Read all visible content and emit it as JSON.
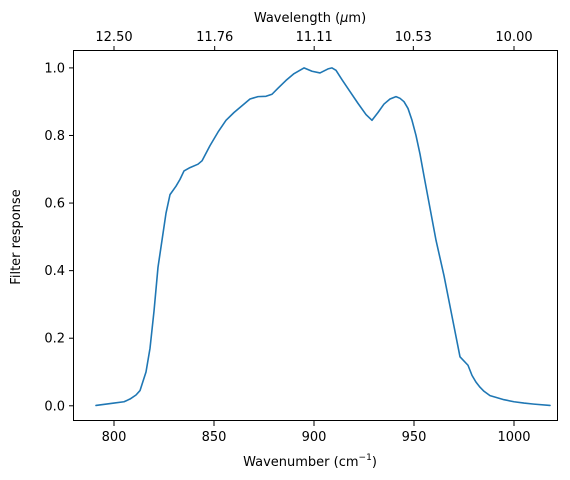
{
  "chart_data": {
    "type": "line",
    "title": "",
    "xlabel_text": "Wavenumber (cm",
    "xlabel_sup": "−1",
    "xlabel_close": ")",
    "ylabel": "Filter response",
    "top_axis_label_text": "Wavelength (",
    "top_axis_label_mu": "μ",
    "top_axis_label_close": "m)",
    "xlim": [
      780,
      1022
    ],
    "ylim": [
      -0.045,
      1.05
    ],
    "xticks": [
      800,
      850,
      900,
      950,
      1000
    ],
    "xtick_labels": [
      "800",
      "850",
      "900",
      "950",
      "1000"
    ],
    "yticks": [
      0.0,
      0.2,
      0.4,
      0.6,
      0.8,
      1.0
    ],
    "ytick_labels": [
      "0.0",
      "0.2",
      "0.4",
      "0.6",
      "0.8",
      "1.0"
    ],
    "top_ticks_wavelength_um": [
      12.5,
      11.76,
      11.11,
      10.53,
      10.0
    ],
    "top_tick_labels": [
      "12.50",
      "11.76",
      "11.11",
      "10.53",
      "10.00"
    ],
    "grid": false,
    "line_color": "#1f77b4",
    "series": [
      {
        "x": [
          791,
          800,
          805,
          808,
          811,
          813,
          816,
          818,
          820,
          822,
          824,
          826,
          828,
          831,
          833,
          835,
          838,
          842,
          844,
          848,
          852,
          856,
          860,
          864,
          868,
          872,
          876,
          879,
          882,
          886,
          890,
          895,
          899,
          903,
          907,
          909,
          911,
          914,
          918,
          922,
          926,
          929,
          932,
          935,
          938,
          941,
          943,
          945,
          947,
          949,
          951,
          953,
          955,
          958,
          961,
          965,
          969,
          973,
          977,
          979,
          981,
          983,
          985,
          988,
          991,
          995,
          1000,
          1005,
          1010,
          1018
        ],
        "y": [
          0.001,
          0.008,
          0.012,
          0.02,
          0.032,
          0.045,
          0.1,
          0.17,
          0.28,
          0.41,
          0.49,
          0.57,
          0.625,
          0.65,
          0.67,
          0.695,
          0.705,
          0.715,
          0.725,
          0.77,
          0.81,
          0.845,
          0.868,
          0.888,
          0.908,
          0.915,
          0.916,
          0.922,
          0.94,
          0.963,
          0.983,
          1.0,
          0.99,
          0.985,
          0.997,
          1.0,
          0.993,
          0.965,
          0.93,
          0.895,
          0.862,
          0.845,
          0.868,
          0.893,
          0.908,
          0.915,
          0.91,
          0.9,
          0.88,
          0.845,
          0.8,
          0.745,
          0.68,
          0.585,
          0.49,
          0.385,
          0.265,
          0.145,
          0.12,
          0.09,
          0.07,
          0.055,
          0.043,
          0.03,
          0.025,
          0.018,
          0.012,
          0.008,
          0.005,
          0.001
        ]
      }
    ]
  }
}
